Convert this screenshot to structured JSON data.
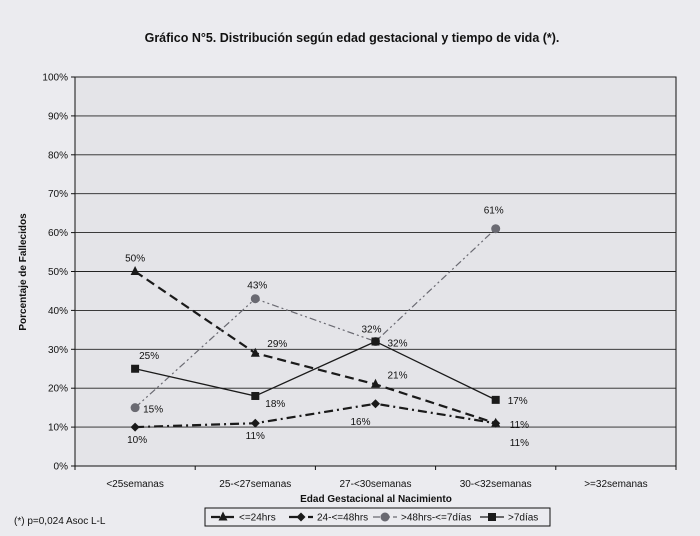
{
  "chart_data": {
    "type": "line",
    "title": "Gráfico N°5. Distribución según edad gestacional y tiempo de vida (*).",
    "xlabel": "Edad Gestacional al Nacimiento",
    "ylabel": "Porcentaje de Fallecidos",
    "ylim": [
      0,
      100
    ],
    "yticks": [
      "0%",
      "10%",
      "20%",
      "30%",
      "40%",
      "50%",
      "60%",
      "70%",
      "80%",
      "90%",
      "100%"
    ],
    "categories": [
      "<25semanas",
      "25-<27semanas",
      "27-<30semanas",
      "30-<32semanas",
      ">=32semanas"
    ],
    "grid": true,
    "legend_position": "bottom",
    "footnote": "(*) p=0,024 Asoc L-L",
    "series": [
      {
        "name": "<=24hrs",
        "marker": "triangle",
        "dash": "long-dash",
        "color": "#1a1a1a",
        "values": [
          50,
          29,
          21,
          11,
          null
        ],
        "labels": [
          "50%",
          "29%",
          "21%",
          "11%",
          ""
        ]
      },
      {
        "name": "24-<=48hrs",
        "marker": "diamond",
        "dash": "dash-dot",
        "color": "#1a1a1a",
        "values": [
          10,
          11,
          16,
          11,
          null
        ],
        "labels": [
          "10%",
          "11%",
          "16%",
          "11%",
          ""
        ]
      },
      {
        "name": ">48hrs-<=7días",
        "marker": "circle",
        "dash": "dash-dot-dot",
        "color": "#6a6a72",
        "values": [
          15,
          43,
          32,
          61,
          null
        ],
        "labels": [
          "15%",
          "43%",
          "32%",
          "61%",
          ""
        ]
      },
      {
        "name": ">7días",
        "marker": "square",
        "dash": "solid",
        "color": "#1a1a1a",
        "values": [
          25,
          18,
          32,
          17,
          null
        ],
        "labels": [
          "25%",
          "18%",
          "32%",
          "17%",
          ""
        ]
      }
    ]
  }
}
